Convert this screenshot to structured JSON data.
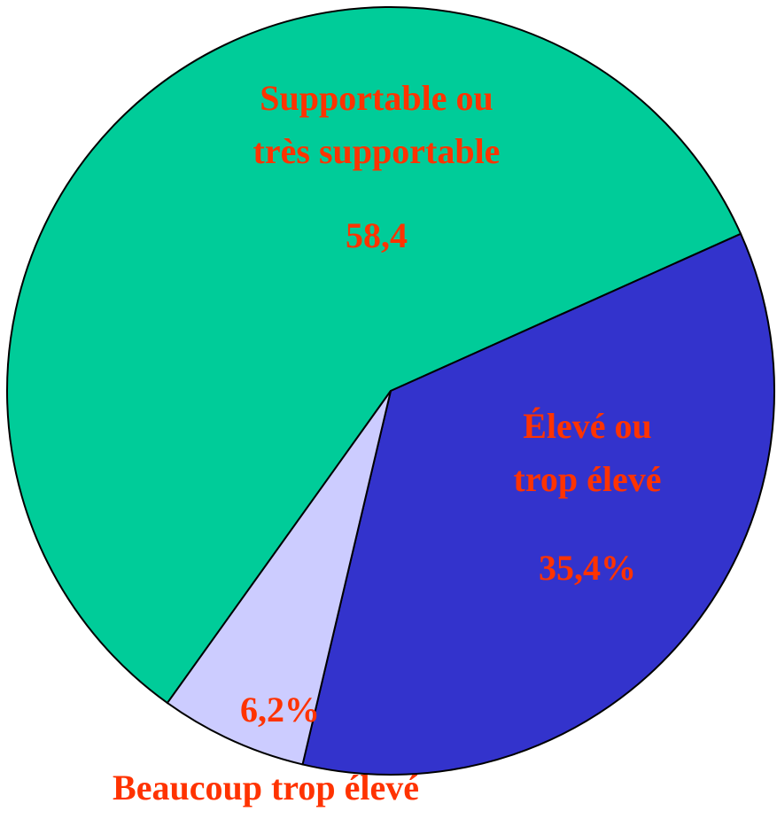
{
  "chart_data": {
    "type": "pie",
    "categories": [
      "Supportable ou\ntrès supportable",
      "Élevé ou\ntrop élevé",
      "Beaucoup trop élevé"
    ],
    "values": [
      58.4,
      35.4,
      6.2
    ],
    "value_labels": [
      "58,4",
      "35,4%",
      "6,2%"
    ],
    "colors": [
      "#00cc99",
      "#3333cc",
      "#ccccff"
    ]
  }
}
